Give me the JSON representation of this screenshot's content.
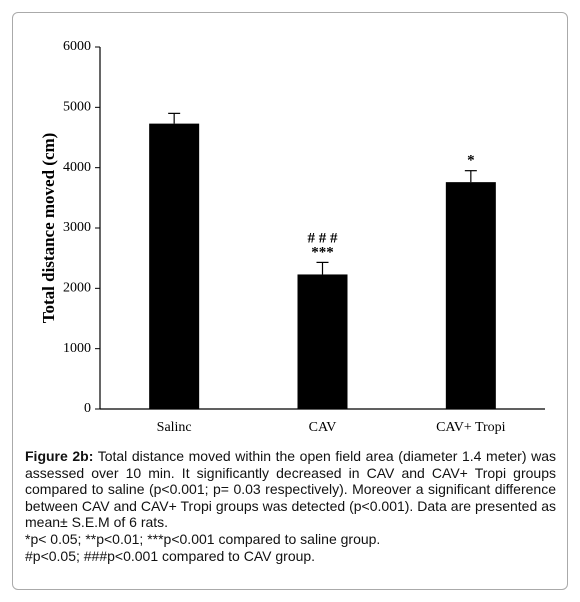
{
  "chart_data": {
    "type": "bar",
    "y_label": "Total distance moved (cm)",
    "categories": [
      "Salinc",
      "CAV",
      "CAV+  Tropi"
    ],
    "values": [
      4730,
      2230,
      3760
    ],
    "errors": [
      170,
      200,
      190
    ],
    "color": "#000000",
    "ylim": [
      0,
      6000
    ],
    "yticks": [
      0,
      1000,
      2000,
      3000,
      4000,
      5000,
      6000
    ],
    "annotations": [
      {
        "x": "CAV",
        "lines": [
          "# # #",
          "***"
        ]
      },
      {
        "x": "CAV+  Tropi",
        "lines": [
          "*"
        ]
      }
    ]
  },
  "caption": {
    "label": "Figure 2b:",
    "text": "Total distance moved within the open field area (diameter 1.4 meter) was assessed over 10 min. It significantly decreased in CAV and CAV+ Tropi groups compared to saline (p<0.001; p= 0.03 respectively). Moreover a significant difference between CAV and CAV+ Tropi groups was detected (p<0.001). Data are presented as mean± S.E.M of 6 rats.",
    "notes": [
      "*p< 0.05; **p<0.01; ***p<0.001 compared to saline group.",
      "#p<0.05; ###p<0.001 compared to CAV group."
    ]
  }
}
